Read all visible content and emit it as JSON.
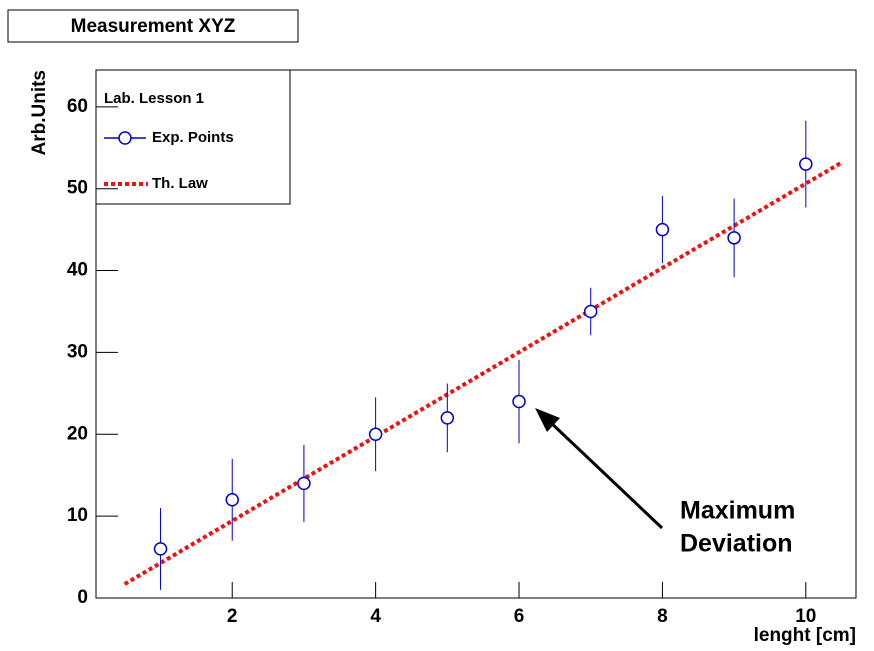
{
  "chart_data": {
    "type": "scatter",
    "title": "Measurement XYZ",
    "xlabel": "lenght [cm]",
    "ylabel": "Arb.Units",
    "legend_title": "Lab. Lesson 1",
    "legend": "top-left",
    "xlim": [
      0.1,
      10.7
    ],
    "ylim": [
      0,
      64.5
    ],
    "xticks": [
      2,
      4,
      6,
      8,
      10
    ],
    "yticks": [
      0,
      10,
      20,
      30,
      40,
      50,
      60
    ],
    "series": [
      {
        "name": "Exp. Points",
        "color": "#0000cc",
        "x": [
          1,
          2,
          3,
          4,
          5,
          6,
          7,
          8,
          9,
          10
        ],
        "values": [
          6,
          12,
          14,
          20,
          22,
          24,
          35,
          45,
          44,
          53
        ],
        "errors": [
          5,
          5,
          4.7,
          4.5,
          4.2,
          5.1,
          2.9,
          4.1,
          4.8,
          5.3
        ]
      },
      {
        "name": "Th. Law",
        "color": "#ee1111",
        "style": "dotted",
        "x": [
          0.5,
          10.5
        ],
        "values": [
          1.7,
          53.2
        ]
      }
    ],
    "annotation": {
      "lines": [
        "Maximum",
        "Deviation"
      ]
    }
  }
}
